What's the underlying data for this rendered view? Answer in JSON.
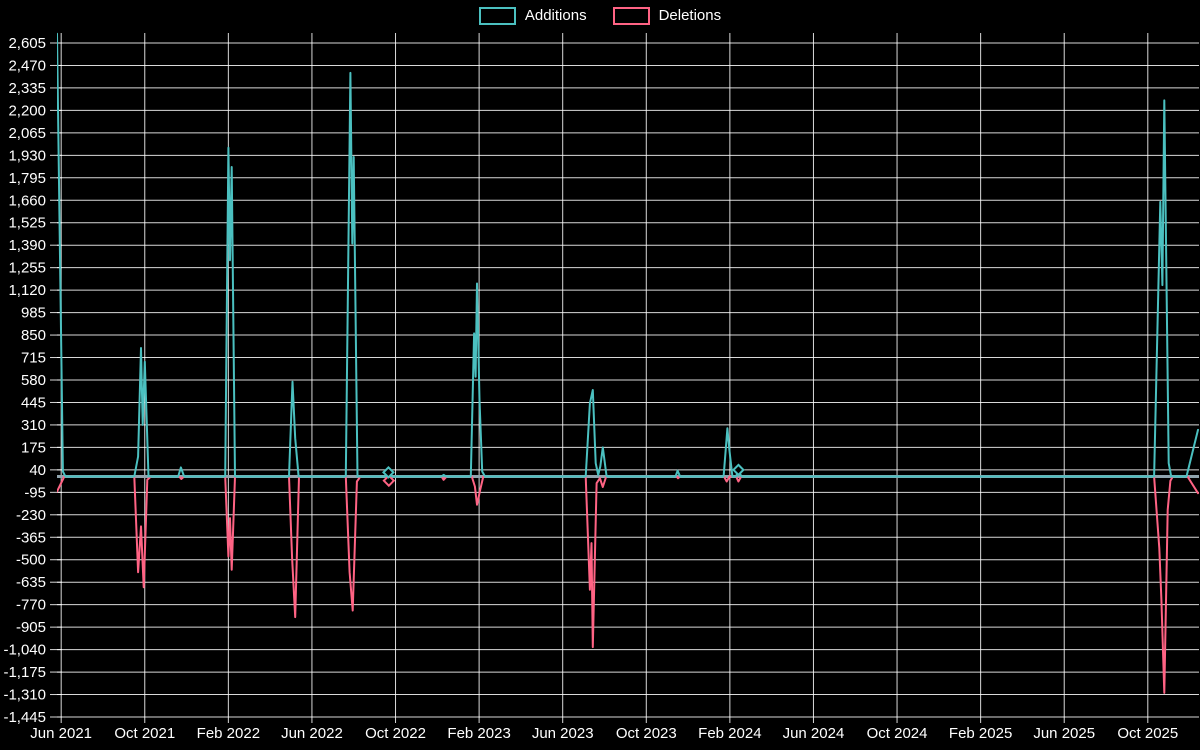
{
  "legend": {
    "items": [
      {
        "label": "Additions",
        "color": "#4bc0c0"
      },
      {
        "label": "Deletions",
        "color": "#ff6384"
      }
    ]
  },
  "chart_data": {
    "type": "line",
    "title": "",
    "xlabel": "",
    "ylabel": "",
    "grid": true,
    "legend_position": "top-center",
    "colors": {
      "additions": "#4bc0c0",
      "deletions": "#ff6384",
      "gridline": "rgba(255,255,255,0.85)",
      "zero_line": "#90a4ae",
      "text": "#ffffff",
      "background": "#000000"
    },
    "x_axis": {
      "unit": "months since Jun 2021",
      "tick_interval_months": 4,
      "range_months": [
        -0.2,
        54.45
      ],
      "tick_labels": [
        "Jun 2021",
        "Oct 2021",
        "Feb 2022",
        "Jun 2022",
        "Oct 2022",
        "Feb 2023",
        "Jun 2023",
        "Oct 2023",
        "Feb 2024",
        "Jun 2024",
        "Oct 2024",
        "Feb 2025",
        "Jun 2025",
        "Oct 2025"
      ]
    },
    "y_axis": {
      "range": [
        -1445,
        2665
      ],
      "tick_step": 135,
      "tick_labels": [
        "2,605",
        "2,470",
        "2,335",
        "2,200",
        "2,065",
        "1,930",
        "1,795",
        "1,660",
        "1,525",
        "1,390",
        "1,255",
        "1,120",
        "985",
        "850",
        "715",
        "580",
        "445",
        "310",
        "175",
        "40",
        "-95",
        "-230",
        "-365",
        "-500",
        "-635",
        "-770",
        "-905",
        "-1,040",
        "-1,175",
        "-1,310",
        "-1,445"
      ]
    },
    "series": [
      {
        "name": "Additions",
        "color_key": "additions",
        "points": [
          [
            -0.2,
            2660
          ],
          [
            0.08,
            30
          ],
          [
            0.2,
            0
          ],
          [
            3.5,
            0
          ],
          [
            3.68,
            120
          ],
          [
            3.82,
            772
          ],
          [
            3.9,
            310
          ],
          [
            4.0,
            690
          ],
          [
            4.18,
            0
          ],
          [
            5.6,
            0
          ],
          [
            5.73,
            55
          ],
          [
            5.88,
            0
          ],
          [
            7.85,
            0
          ],
          [
            8.0,
            1975
          ],
          [
            8.08,
            1300
          ],
          [
            8.16,
            1860
          ],
          [
            8.32,
            0
          ],
          [
            10.9,
            0
          ],
          [
            11.07,
            570
          ],
          [
            11.2,
            230
          ],
          [
            11.36,
            0
          ],
          [
            13.62,
            0
          ],
          [
            13.84,
            2425
          ],
          [
            13.93,
            1400
          ],
          [
            14.0,
            1920
          ],
          [
            14.18,
            0
          ],
          [
            15.5,
            0
          ],
          [
            15.66,
            25
          ],
          [
            15.82,
            0
          ],
          [
            18.2,
            0
          ],
          [
            18.3,
            10
          ],
          [
            18.42,
            0
          ],
          [
            19.6,
            0
          ],
          [
            19.76,
            860
          ],
          [
            19.83,
            600
          ],
          [
            19.9,
            1160
          ],
          [
            20.02,
            460
          ],
          [
            20.15,
            30
          ],
          [
            20.28,
            0
          ],
          [
            25.1,
            0
          ],
          [
            25.3,
            440
          ],
          [
            25.44,
            520
          ],
          [
            25.58,
            80
          ],
          [
            25.7,
            10
          ],
          [
            25.8,
            60
          ],
          [
            25.92,
            175
          ],
          [
            26.1,
            0
          ],
          [
            29.4,
            0
          ],
          [
            29.5,
            35
          ],
          [
            29.62,
            0
          ],
          [
            31.7,
            0
          ],
          [
            31.88,
            290
          ],
          [
            31.97,
            170
          ],
          [
            32.12,
            0
          ],
          [
            32.3,
            0
          ],
          [
            32.41,
            40
          ],
          [
            32.55,
            0
          ],
          [
            52.3,
            0
          ],
          [
            52.6,
            1650
          ],
          [
            52.7,
            1150
          ],
          [
            52.79,
            2260
          ],
          [
            53.0,
            80
          ],
          [
            53.12,
            0
          ],
          [
            53.85,
            0
          ],
          [
            54.4,
            280
          ]
        ],
        "markers": [
          [
            15.66,
            25
          ],
          [
            32.41,
            40
          ]
        ]
      },
      {
        "name": "Deletions",
        "color_key": "deletions",
        "points": [
          [
            -0.2,
            -90
          ],
          [
            0.15,
            0
          ],
          [
            3.5,
            0
          ],
          [
            3.68,
            -575
          ],
          [
            3.82,
            -300
          ],
          [
            3.95,
            -665
          ],
          [
            4.12,
            -20
          ],
          [
            4.3,
            0
          ],
          [
            5.65,
            0
          ],
          [
            5.75,
            -15
          ],
          [
            5.88,
            0
          ],
          [
            7.85,
            0
          ],
          [
            8.0,
            -480
          ],
          [
            8.08,
            -250
          ],
          [
            8.16,
            -560
          ],
          [
            8.32,
            0
          ],
          [
            10.9,
            0
          ],
          [
            11.05,
            -490
          ],
          [
            11.2,
            -845
          ],
          [
            11.38,
            0
          ],
          [
            13.62,
            0
          ],
          [
            13.8,
            -575
          ],
          [
            13.95,
            -805
          ],
          [
            14.15,
            -30
          ],
          [
            14.32,
            0
          ],
          [
            15.55,
            0
          ],
          [
            15.68,
            -25
          ],
          [
            15.8,
            0
          ],
          [
            18.2,
            0
          ],
          [
            18.3,
            -20
          ],
          [
            18.45,
            0
          ],
          [
            19.65,
            0
          ],
          [
            19.8,
            -60
          ],
          [
            19.9,
            -170
          ],
          [
            20.05,
            -80
          ],
          [
            20.2,
            0
          ],
          [
            25.1,
            0
          ],
          [
            25.3,
            -680
          ],
          [
            25.38,
            -400
          ],
          [
            25.44,
            -1025
          ],
          [
            25.62,
            -40
          ],
          [
            25.78,
            -10
          ],
          [
            25.92,
            -63
          ],
          [
            26.08,
            0
          ],
          [
            29.45,
            0
          ],
          [
            29.52,
            -10
          ],
          [
            29.62,
            0
          ],
          [
            31.72,
            0
          ],
          [
            31.85,
            -30
          ],
          [
            31.98,
            0
          ],
          [
            32.3,
            0
          ],
          [
            32.41,
            -30
          ],
          [
            32.54,
            0
          ],
          [
            52.3,
            0
          ],
          [
            52.55,
            -430
          ],
          [
            52.65,
            -740
          ],
          [
            52.79,
            -1300
          ],
          [
            52.95,
            -200
          ],
          [
            53.08,
            -25
          ],
          [
            53.2,
            0
          ],
          [
            53.9,
            0
          ],
          [
            54.4,
            -100
          ]
        ],
        "markers": [
          [
            15.68,
            -25
          ]
        ]
      }
    ]
  }
}
